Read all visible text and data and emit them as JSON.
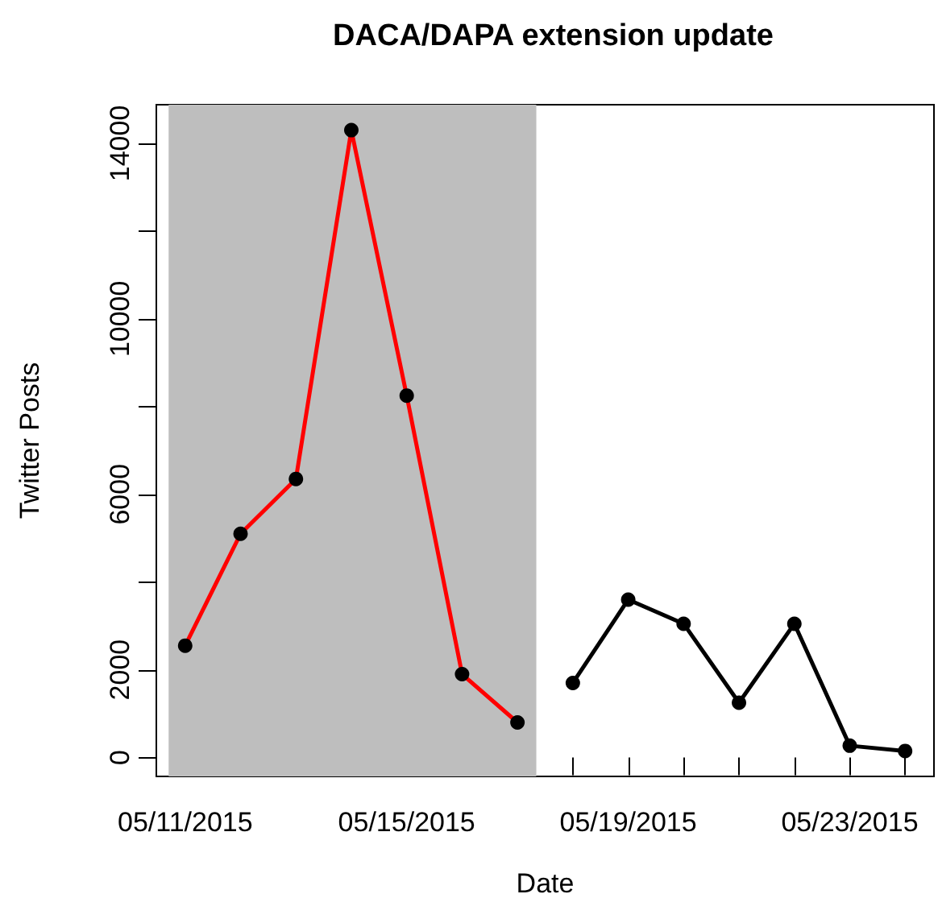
{
  "chart_data": {
    "type": "line",
    "title": "DACA/DAPA extension update",
    "xlabel": "Date",
    "ylabel": "Twitter Posts",
    "series": [
      {
        "color": "#ff0000",
        "x": [
          "2015-05-11",
          "2015-05-12",
          "2015-05-13",
          "2015-05-14",
          "2015-05-15",
          "2015-05-16",
          "2015-05-17"
        ],
        "values": [
          2550,
          5100,
          6350,
          14300,
          8250,
          1900,
          800
        ]
      },
      {
        "color": "#000000",
        "x": [
          "2015-05-18",
          "2015-05-19",
          "2015-05-20",
          "2015-05-21",
          "2015-05-22",
          "2015-05-23",
          "2015-05-24"
        ],
        "values": [
          1700,
          3600,
          3050,
          1250,
          3050,
          270,
          150
        ]
      }
    ],
    "xlim": [
      "2015-05-10T11:30",
      "2015-05-24T12:30"
    ],
    "ylim": [
      -430,
      14880
    ],
    "xticks": [
      {
        "value": "2015-05-11",
        "label": "05/11/2015"
      },
      {
        "value": "2015-05-12",
        "label": null
      },
      {
        "value": "2015-05-13",
        "label": null
      },
      {
        "value": "2015-05-14",
        "label": null
      },
      {
        "value": "2015-05-15",
        "label": "05/15/2015"
      },
      {
        "value": "2015-05-16",
        "label": null
      },
      {
        "value": "2015-05-17",
        "label": null
      },
      {
        "value": "2015-05-18",
        "label": null
      },
      {
        "value": "2015-05-19",
        "label": "05/19/2015"
      },
      {
        "value": "2015-05-20",
        "label": null
      },
      {
        "value": "2015-05-21",
        "label": null
      },
      {
        "value": "2015-05-22",
        "label": null
      },
      {
        "value": "2015-05-23",
        "label": "05/23/2015"
      },
      {
        "value": "2015-05-24",
        "label": null
      }
    ],
    "yticks": [
      0,
      2000,
      {
        "value": 4000,
        "label": null
      },
      6000,
      {
        "value": 8000,
        "label": null
      },
      10000,
      {
        "value": 12000,
        "label": null
      },
      14000
    ],
    "bands": [
      {
        "axis": "x",
        "from": "2015-05-10T16:50",
        "to": "2015-05-17T08:10",
        "color": "#bebebe"
      }
    ],
    "marker": "circle",
    "line_style": "solid"
  }
}
